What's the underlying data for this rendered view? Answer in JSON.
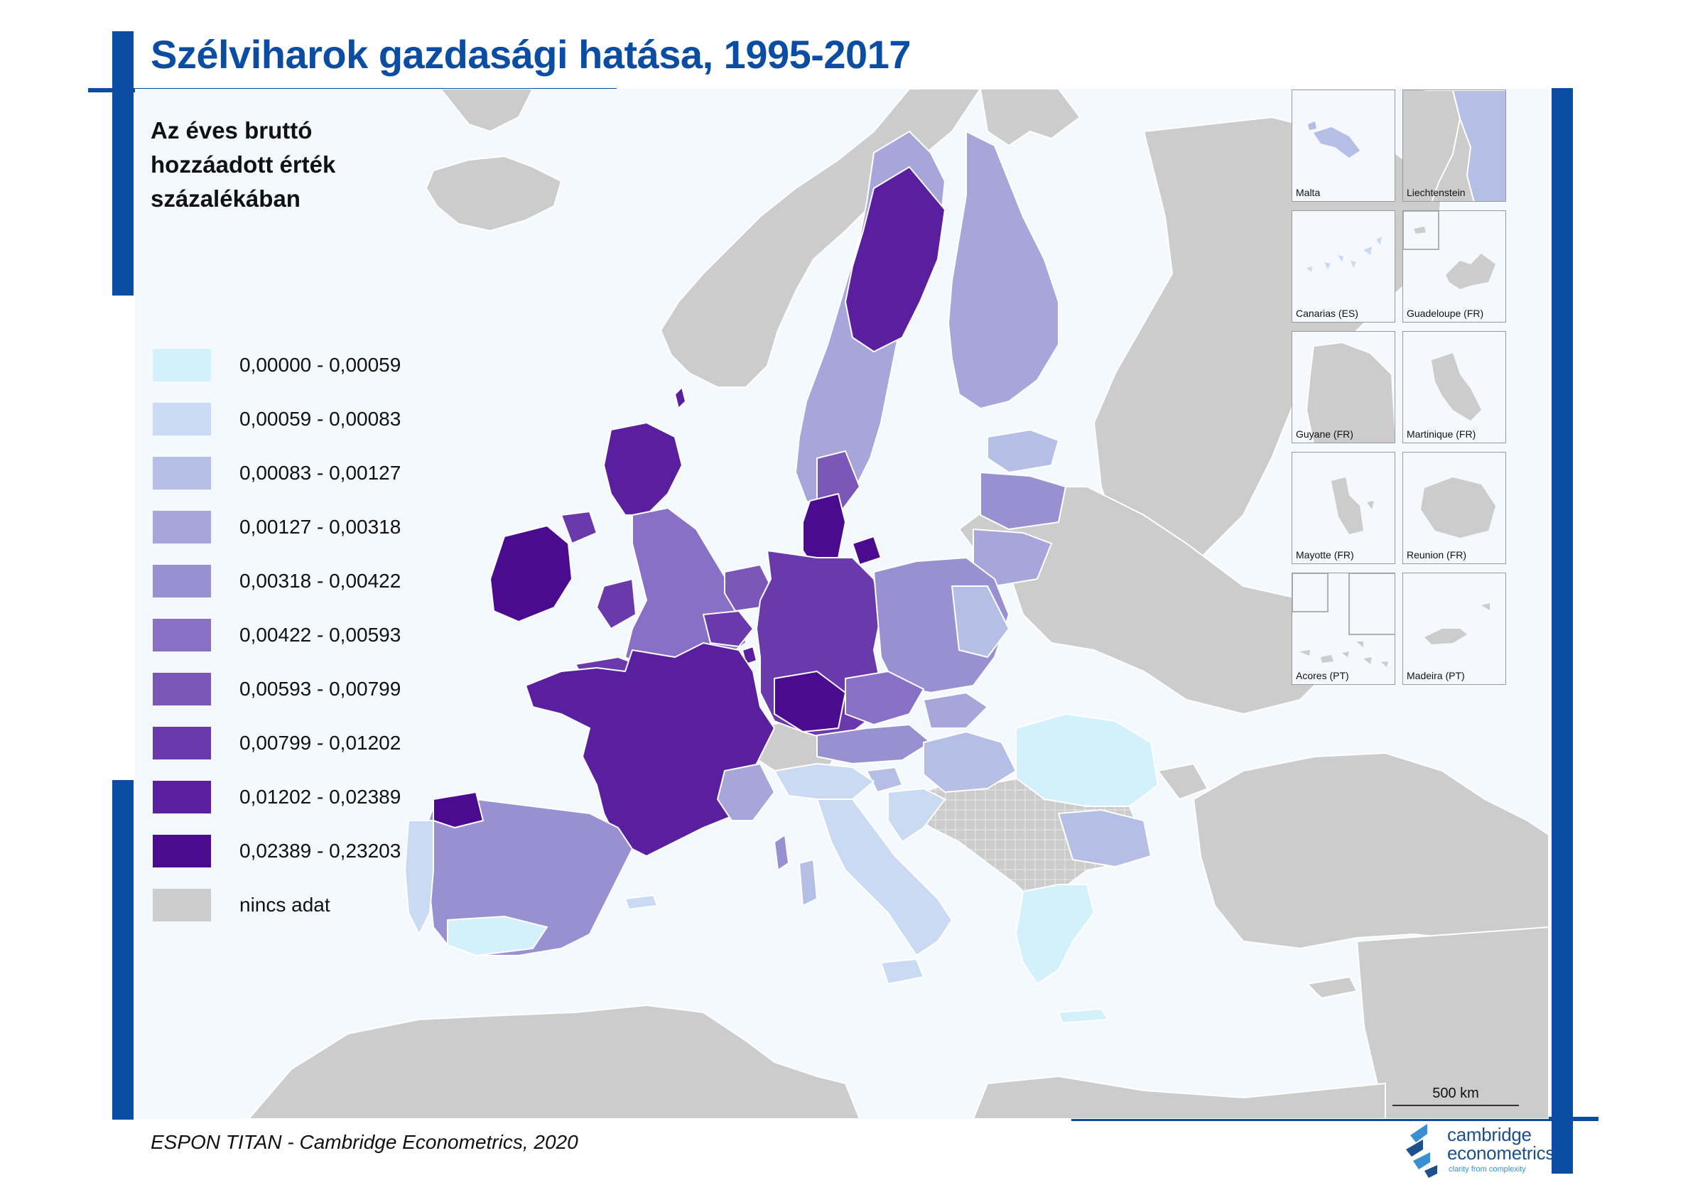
{
  "title": "Szélviharok gazdasági hatása, 1995-2017",
  "subtitle": [
    "Az éves bruttó",
    "hozzáadott érték",
    "százalékában"
  ],
  "legend": [
    {
      "label": "0,00000  -  0,00059",
      "color": "#d3f1fb"
    },
    {
      "label": "0,00059  -  0,00083",
      "color": "#c9daf2"
    },
    {
      "label": "0,00083  -  0,00127",
      "color": "#b5bfe6"
    },
    {
      "label": "0,00127  -  0,00318",
      "color": "#a7a6da"
    },
    {
      "label": "0,00318  -  0,00422",
      "color": "#9990d1"
    },
    {
      "label": "0,00422  -  0,00593",
      "color": "#8870c6"
    },
    {
      "label": "0,00593  -  0,00799",
      "color": "#7b57ba"
    },
    {
      "label": "0,00799  -  0,01202",
      "color": "#6a3aad"
    },
    {
      "label": "0,01202  -  0,02389",
      "color": "#5a1f9f"
    },
    {
      "label": "0,02389  -  0,23203",
      "color": "#4a0b8f"
    },
    {
      "label": "nincs adat",
      "color": "#cccccc"
    }
  ],
  "insets": [
    {
      "name": "Malta",
      "icon": "malta-island-icon"
    },
    {
      "name": "Liechtenstein",
      "icon": "liechtenstein-icon"
    },
    {
      "name": "Canarias (ES)",
      "icon": "canary-islands-icon"
    },
    {
      "name": "Guadeloupe (FR)",
      "icon": "guadeloupe-icon"
    },
    {
      "name": "Guyane (FR)",
      "icon": "guyane-icon"
    },
    {
      "name": "Martinique (FR)",
      "icon": "martinique-icon"
    },
    {
      "name": "Mayotte (FR)",
      "icon": "mayotte-icon"
    },
    {
      "name": "Reunion (FR)",
      "icon": "reunion-icon"
    },
    {
      "name": "Acores (PT)",
      "icon": "azores-icon"
    },
    {
      "name": "Madeira (PT)",
      "icon": "madeira-icon"
    }
  ],
  "scale": "500 km",
  "source": "ESPON TITAN - Cambridge Econometrics, 2020",
  "logo": {
    "line1": "cambridge",
    "line2": "econometrics",
    "tagline": "clarity from complexity"
  },
  "colors": {
    "frame": "#0b4da2",
    "sea": "#f3f9fe",
    "no_data": "#cccccc",
    "region_border": "#ffffff"
  }
}
